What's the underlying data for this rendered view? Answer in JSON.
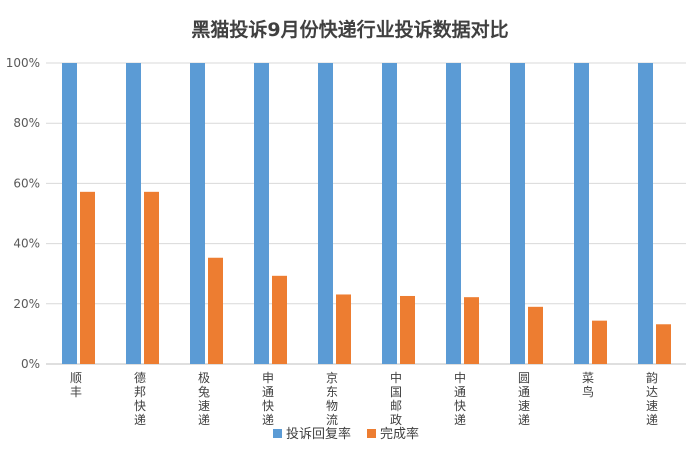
{
  "chart_data": {
    "type": "bar",
    "title": "黑猫投诉9月份快递行业投诉数据对比",
    "categories": [
      "顺丰",
      "德邦快递",
      "极兔速递",
      "申通快递",
      "京东物流",
      "中国邮政",
      "中通快递",
      "圆通速递",
      "菜鸟",
      "韵达速递"
    ],
    "series": [
      {
        "name": "投诉回复率",
        "color": "#5B9BD5",
        "values": [
          100,
          100,
          100,
          100,
          100,
          100,
          100,
          100,
          100,
          100
        ]
      },
      {
        "name": "完成率",
        "color": "#ED7D31",
        "values": [
          57.2,
          57.2,
          35.3,
          29.3,
          23.1,
          22.6,
          22.2,
          19.0,
          14.4,
          13.2
        ]
      }
    ],
    "yticks": [
      "0%",
      "20%",
      "40%",
      "60%",
      "80%",
      "100%"
    ],
    "ylim": [
      0,
      100
    ],
    "grid": true,
    "legend": "bottom"
  }
}
